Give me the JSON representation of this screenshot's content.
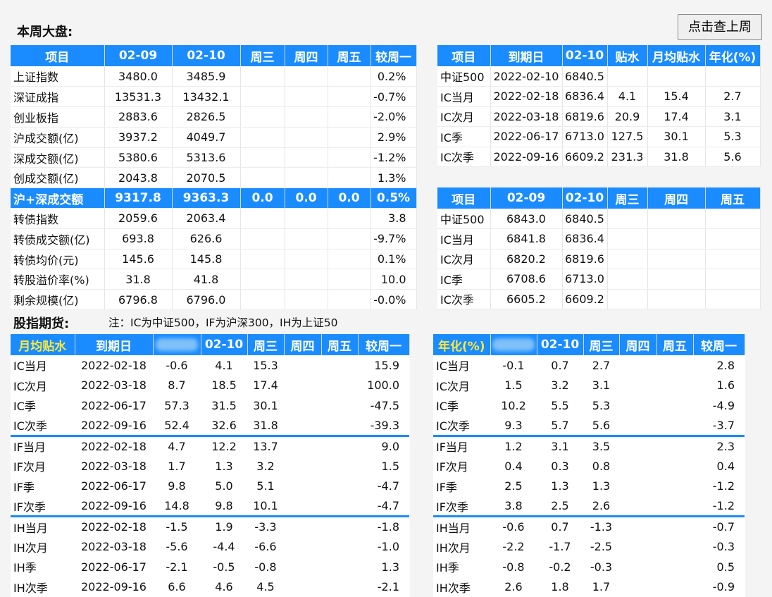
{
  "title": "本周大盘:",
  "button": "点击查上周",
  "market": {
    "headers": [
      "项目",
      "02-09",
      "02-10",
      "周三",
      "周四",
      "周五",
      "较周一"
    ],
    "rows": [
      [
        "上证指数",
        "3480.0",
        "3485.9",
        "",
        "",
        "",
        "0.2%"
      ],
      [
        "深证成指",
        "13531.3",
        "13432.1",
        "",
        "",
        "",
        "-0.7%"
      ],
      [
        "创业板指",
        "2883.6",
        "2826.5",
        "",
        "",
        "",
        "-2.0%"
      ],
      [
        "沪成交额(亿)",
        "3937.2",
        "4049.7",
        "",
        "",
        "",
        "2.9%"
      ],
      [
        "深成交额(亿)",
        "5380.6",
        "5313.6",
        "",
        "",
        "",
        "-1.2%"
      ],
      [
        "创成交额(亿)",
        "2043.8",
        "2070.5",
        "",
        "",
        "",
        "1.3%"
      ],
      [
        "沪+深成交额",
        "9317.8",
        "9363.3",
        "0.0",
        "0.0",
        "0.0",
        "0.5%"
      ],
      [
        "转债指数",
        "2059.6",
        "2063.4",
        "",
        "",
        "",
        "3.8"
      ],
      [
        "转债成交额(亿)",
        "693.8",
        "626.6",
        "",
        "",
        "",
        "-9.7%"
      ],
      [
        "转债均价(元)",
        "145.6",
        "145.8",
        "",
        "",
        "",
        "0.1%"
      ],
      [
        "转股溢价率(%)",
        "31.8",
        "41.8",
        "",
        "",
        "",
        "10.0"
      ],
      [
        "剩余规模(亿)",
        "6796.8",
        "6796.0",
        "",
        "",
        "",
        "-0.0%"
      ]
    ]
  },
  "expiry": {
    "headers": [
      "项目",
      "到期日",
      "02-10",
      "贴水",
      "月均贴水",
      "年化(%)"
    ],
    "rows": [
      [
        "中证500",
        "2022-02-10",
        "6840.5",
        "",
        "",
        ""
      ],
      [
        "IC当月",
        "2022-02-18",
        "6836.4",
        "4.1",
        "15.4",
        "2.7"
      ],
      [
        "IC次月",
        "2022-03-18",
        "6819.6",
        "20.9",
        "17.4",
        "3.1"
      ],
      [
        "IC季",
        "2022-06-17",
        "6713.0",
        "127.5",
        "30.1",
        "5.3"
      ],
      [
        "IC次季",
        "2022-09-16",
        "6609.2",
        "231.3",
        "31.8",
        "5.6"
      ]
    ]
  },
  "ic_prices": {
    "headers": [
      "项目",
      "02-09",
      "02-10",
      "周三",
      "周四",
      "周五"
    ],
    "rows": [
      [
        "中证500",
        "6843.0",
        "6840.5",
        "",
        "",
        ""
      ],
      [
        "IC当月",
        "6841.8",
        "6836.4",
        "",
        "",
        ""
      ],
      [
        "IC次月",
        "6820.2",
        "6819.6",
        "",
        "",
        ""
      ],
      [
        "IC季",
        "6708.6",
        "6713.0",
        "",
        "",
        ""
      ],
      [
        "IC次季",
        "6605.2",
        "6609.2",
        "",
        "",
        ""
      ]
    ]
  },
  "futures_title": "股指期货:",
  "futures_note": "注：IC为中证500，IF为沪深300，IH为上证50",
  "monthly": {
    "headers": [
      "月均贴水",
      "到期日",
      "",
      "02-10",
      "周三",
      "周四",
      "周五",
      "较周一"
    ],
    "rows": [
      [
        "IC当月",
        "2022-02-18",
        "-0.6",
        "4.1",
        "15.3",
        "",
        "",
        "15.9"
      ],
      [
        "IC次月",
        "2022-03-18",
        "8.7",
        "18.5",
        "17.4",
        "",
        "",
        "100.0"
      ],
      [
        "IC季",
        "2022-06-17",
        "57.3",
        "31.5",
        "30.1",
        "",
        "",
        "-47.5"
      ],
      [
        "IC次季",
        "2022-09-16",
        "52.4",
        "32.6",
        "31.8",
        "",
        "",
        "-39.3"
      ],
      [
        "IF当月",
        "2022-02-18",
        "4.7",
        "12.2",
        "13.7",
        "",
        "",
        "9.0"
      ],
      [
        "IF次月",
        "2022-03-18",
        "1.7",
        "1.3",
        "3.2",
        "",
        "",
        "1.5"
      ],
      [
        "IF季",
        "2022-06-17",
        "9.8",
        "5.0",
        "5.1",
        "",
        "",
        "-4.7"
      ],
      [
        "IF次季",
        "2022-09-16",
        "14.8",
        "9.8",
        "10.1",
        "",
        "",
        "-4.7"
      ],
      [
        "IH当月",
        "2022-02-18",
        "-1.5",
        "1.9",
        "-3.3",
        "",
        "",
        "-1.8"
      ],
      [
        "IH次月",
        "2022-03-18",
        "-5.6",
        "-4.4",
        "-6.6",
        "",
        "",
        "-1.0"
      ],
      [
        "IH季",
        "2022-06-17",
        "-2.1",
        "-0.5",
        "-0.8",
        "",
        "",
        "1.3"
      ],
      [
        "IH次季",
        "2022-09-16",
        "6.6",
        "4.6",
        "4.5",
        "",
        "",
        "-2.1"
      ]
    ]
  },
  "annual": {
    "headers": [
      "年化(%)",
      "",
      "02-10",
      "周三",
      "周四",
      "周五",
      "较周一"
    ],
    "rows": [
      [
        "IC当月",
        "-0.1",
        "0.7",
        "2.7",
        "",
        "",
        "2.8"
      ],
      [
        "IC次月",
        "1.5",
        "3.2",
        "3.1",
        "",
        "",
        "1.6"
      ],
      [
        "IC季",
        "10.2",
        "5.5",
        "5.3",
        "",
        "",
        "-4.9"
      ],
      [
        "IC次季",
        "9.3",
        "5.7",
        "5.6",
        "",
        "",
        "-3.7"
      ],
      [
        "IF当月",
        "1.2",
        "3.1",
        "3.5",
        "",
        "",
        "2.3"
      ],
      [
        "IF次月",
        "0.4",
        "0.3",
        "0.8",
        "",
        "",
        "0.4"
      ],
      [
        "IF季",
        "2.5",
        "1.3",
        "1.3",
        "",
        "",
        "-1.2"
      ],
      [
        "IF次季",
        "3.8",
        "2.5",
        "2.6",
        "",
        "",
        "-1.2"
      ],
      [
        "IH当月",
        "-0.6",
        "0.7",
        "-1.3",
        "",
        "",
        "-0.7"
      ],
      [
        "IH次月",
        "-2.2",
        "-1.7",
        "-2.5",
        "",
        "",
        "-0.3"
      ],
      [
        "IH季",
        "-0.8",
        "-0.2",
        "-0.3",
        "",
        "",
        "0.5"
      ],
      [
        "IH次季",
        "2.6",
        "1.8",
        "1.7",
        "",
        "",
        "-0.9"
      ]
    ]
  },
  "colors": {
    "header_bg": "#1a8cff",
    "header_fg": "#ffffff",
    "accent_yellow": "#ffe83a"
  }
}
